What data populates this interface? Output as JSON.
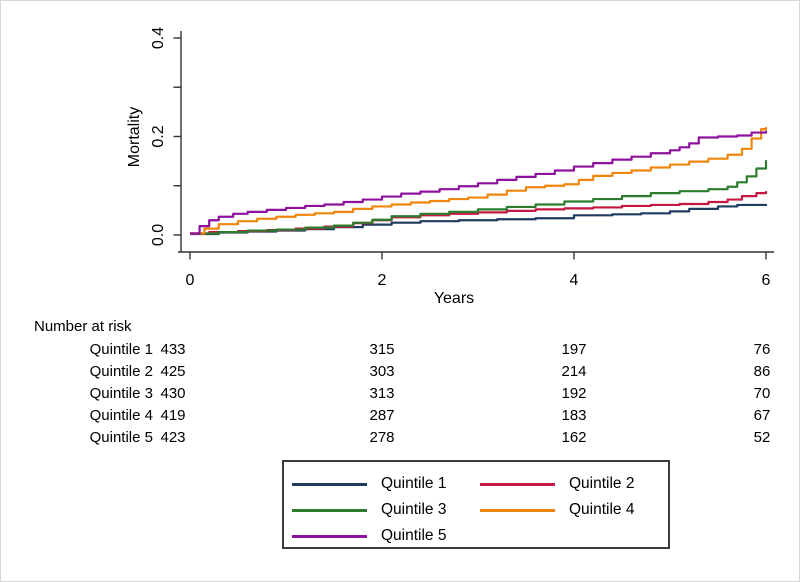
{
  "chart_data": {
    "type": "line",
    "subtype": "kaplan-meier-cumulative-incidence",
    "title": "",
    "xlabel": "Years",
    "ylabel": "Mortality",
    "xlim": [
      0,
      6
    ],
    "ylim": [
      0,
      0.4
    ],
    "x_ticks": [
      0,
      2,
      4,
      6
    ],
    "x_tick_labels": [
      "0",
      "2",
      "4",
      "6"
    ],
    "y_ticks_major": [
      0.0,
      0.2,
      0.4
    ],
    "y_tick_labels": [
      "0.0",
      "0.2",
      "0.4"
    ],
    "y_ticks_minor": [
      0.1,
      0.3
    ],
    "grid": false,
    "legend_position": "bottom-box",
    "axis_color": "#333333",
    "step_interpolation": "step-after",
    "series": [
      {
        "name": "Quintile 1",
        "color": "#1e3a5f",
        "points": [
          [
            0,
            0.002
          ],
          [
            0.3,
            0.005
          ],
          [
            0.6,
            0.007
          ],
          [
            0.9,
            0.009
          ],
          [
            1.2,
            0.012
          ],
          [
            1.5,
            0.016
          ],
          [
            1.8,
            0.021
          ],
          [
            2.1,
            0.025
          ],
          [
            2.4,
            0.028
          ],
          [
            2.8,
            0.03
          ],
          [
            3.2,
            0.032
          ],
          [
            3.6,
            0.034
          ],
          [
            4.0,
            0.04
          ],
          [
            4.4,
            0.042
          ],
          [
            4.7,
            0.044
          ],
          [
            5.0,
            0.048
          ],
          [
            5.2,
            0.053
          ],
          [
            5.5,
            0.058
          ],
          [
            5.7,
            0.061
          ],
          [
            6,
            0.063
          ]
        ]
      },
      {
        "name": "Quintile 2",
        "color": "#c41742",
        "points": [
          [
            0,
            0.003
          ],
          [
            0.2,
            0.006
          ],
          [
            0.5,
            0.008
          ],
          [
            0.8,
            0.01
          ],
          [
            1.1,
            0.013
          ],
          [
            1.4,
            0.017
          ],
          [
            1.7,
            0.024
          ],
          [
            1.9,
            0.03
          ],
          [
            2.1,
            0.036
          ],
          [
            2.4,
            0.04
          ],
          [
            2.7,
            0.043
          ],
          [
            3.0,
            0.046
          ],
          [
            3.3,
            0.049
          ],
          [
            3.6,
            0.052
          ],
          [
            3.9,
            0.054
          ],
          [
            4.2,
            0.056
          ],
          [
            4.5,
            0.059
          ],
          [
            4.8,
            0.061
          ],
          [
            5.1,
            0.063
          ],
          [
            5.4,
            0.067
          ],
          [
            5.6,
            0.072
          ],
          [
            5.75,
            0.079
          ],
          [
            5.9,
            0.085
          ],
          [
            6,
            0.089
          ]
        ]
      },
      {
        "name": "Quintile 3",
        "color": "#2d7c2d",
        "points": [
          [
            0,
            0.003
          ],
          [
            0.3,
            0.006
          ],
          [
            0.6,
            0.009
          ],
          [
            0.9,
            0.011
          ],
          [
            1.2,
            0.015
          ],
          [
            1.5,
            0.019
          ],
          [
            1.7,
            0.025
          ],
          [
            1.9,
            0.031
          ],
          [
            2.1,
            0.038
          ],
          [
            2.4,
            0.043
          ],
          [
            2.7,
            0.047
          ],
          [
            3.0,
            0.052
          ],
          [
            3.3,
            0.057
          ],
          [
            3.6,
            0.062
          ],
          [
            3.9,
            0.068
          ],
          [
            4.2,
            0.073
          ],
          [
            4.5,
            0.079
          ],
          [
            4.8,
            0.085
          ],
          [
            5.1,
            0.089
          ],
          [
            5.4,
            0.093
          ],
          [
            5.6,
            0.098
          ],
          [
            5.7,
            0.107
          ],
          [
            5.8,
            0.119
          ],
          [
            5.9,
            0.135
          ],
          [
            6,
            0.152
          ]
        ]
      },
      {
        "name": "Quintile 4",
        "color": "#ef860d",
        "points": [
          [
            0,
            0.003
          ],
          [
            0.15,
            0.013
          ],
          [
            0.3,
            0.022
          ],
          [
            0.5,
            0.028
          ],
          [
            0.7,
            0.033
          ],
          [
            0.9,
            0.037
          ],
          [
            1.1,
            0.041
          ],
          [
            1.3,
            0.044
          ],
          [
            1.5,
            0.047
          ],
          [
            1.7,
            0.053
          ],
          [
            1.9,
            0.058
          ],
          [
            2.1,
            0.062
          ],
          [
            2.3,
            0.066
          ],
          [
            2.5,
            0.069
          ],
          [
            2.7,
            0.073
          ],
          [
            2.9,
            0.076
          ],
          [
            3.1,
            0.082
          ],
          [
            3.3,
            0.09
          ],
          [
            3.5,
            0.097
          ],
          [
            3.7,
            0.1
          ],
          [
            3.9,
            0.103
          ],
          [
            4.05,
            0.112
          ],
          [
            4.2,
            0.12
          ],
          [
            4.4,
            0.126
          ],
          [
            4.6,
            0.131
          ],
          [
            4.8,
            0.137
          ],
          [
            5.0,
            0.143
          ],
          [
            5.2,
            0.149
          ],
          [
            5.4,
            0.155
          ],
          [
            5.6,
            0.163
          ],
          [
            5.75,
            0.175
          ],
          [
            5.85,
            0.196
          ],
          [
            5.95,
            0.215
          ],
          [
            6,
            0.219
          ]
        ]
      },
      {
        "name": "Quintile 5",
        "color": "#8e119e",
        "points": [
          [
            0,
            0.003
          ],
          [
            0.1,
            0.018
          ],
          [
            0.2,
            0.03
          ],
          [
            0.3,
            0.037
          ],
          [
            0.45,
            0.043
          ],
          [
            0.6,
            0.047
          ],
          [
            0.8,
            0.051
          ],
          [
            1.0,
            0.055
          ],
          [
            1.2,
            0.059
          ],
          [
            1.4,
            0.062
          ],
          [
            1.6,
            0.067
          ],
          [
            1.8,
            0.072
          ],
          [
            2.0,
            0.078
          ],
          [
            2.2,
            0.084
          ],
          [
            2.4,
            0.088
          ],
          [
            2.6,
            0.093
          ],
          [
            2.8,
            0.099
          ],
          [
            3.0,
            0.105
          ],
          [
            3.2,
            0.112
          ],
          [
            3.4,
            0.118
          ],
          [
            3.6,
            0.124
          ],
          [
            3.8,
            0.131
          ],
          [
            4.0,
            0.139
          ],
          [
            4.2,
            0.146
          ],
          [
            4.4,
            0.153
          ],
          [
            4.6,
            0.159
          ],
          [
            4.8,
            0.166
          ],
          [
            5.0,
            0.172
          ],
          [
            5.1,
            0.178
          ],
          [
            5.2,
            0.186
          ],
          [
            5.3,
            0.198
          ],
          [
            5.5,
            0.2
          ],
          [
            5.7,
            0.202
          ],
          [
            5.85,
            0.208
          ],
          [
            6,
            0.212
          ]
        ]
      }
    ]
  },
  "risk_table": {
    "title": "Number at risk",
    "time_points": [
      0,
      2,
      4,
      6
    ],
    "rows": [
      {
        "label": "Quintile 1",
        "counts": [
          "433",
          "315",
          "197",
          "76"
        ]
      },
      {
        "label": "Quintile 2",
        "counts": [
          "425",
          "303",
          "214",
          "86"
        ]
      },
      {
        "label": "Quintile 3",
        "counts": [
          "430",
          "313",
          "192",
          "70"
        ]
      },
      {
        "label": "Quintile 4",
        "counts": [
          "419",
          "287",
          "183",
          "67"
        ]
      },
      {
        "label": "Quintile 5",
        "counts": [
          "423",
          "278",
          "162",
          "52"
        ]
      }
    ]
  },
  "legend": {
    "items": [
      {
        "label": "Quintile 1",
        "color": "#1e3a5f"
      },
      {
        "label": "Quintile 2",
        "color": "#c41742"
      },
      {
        "label": "Quintile 3",
        "color": "#2d7c2d"
      },
      {
        "label": "Quintile 4",
        "color": "#ef860d"
      },
      {
        "label": "Quintile 5",
        "color": "#8e119e"
      }
    ]
  }
}
